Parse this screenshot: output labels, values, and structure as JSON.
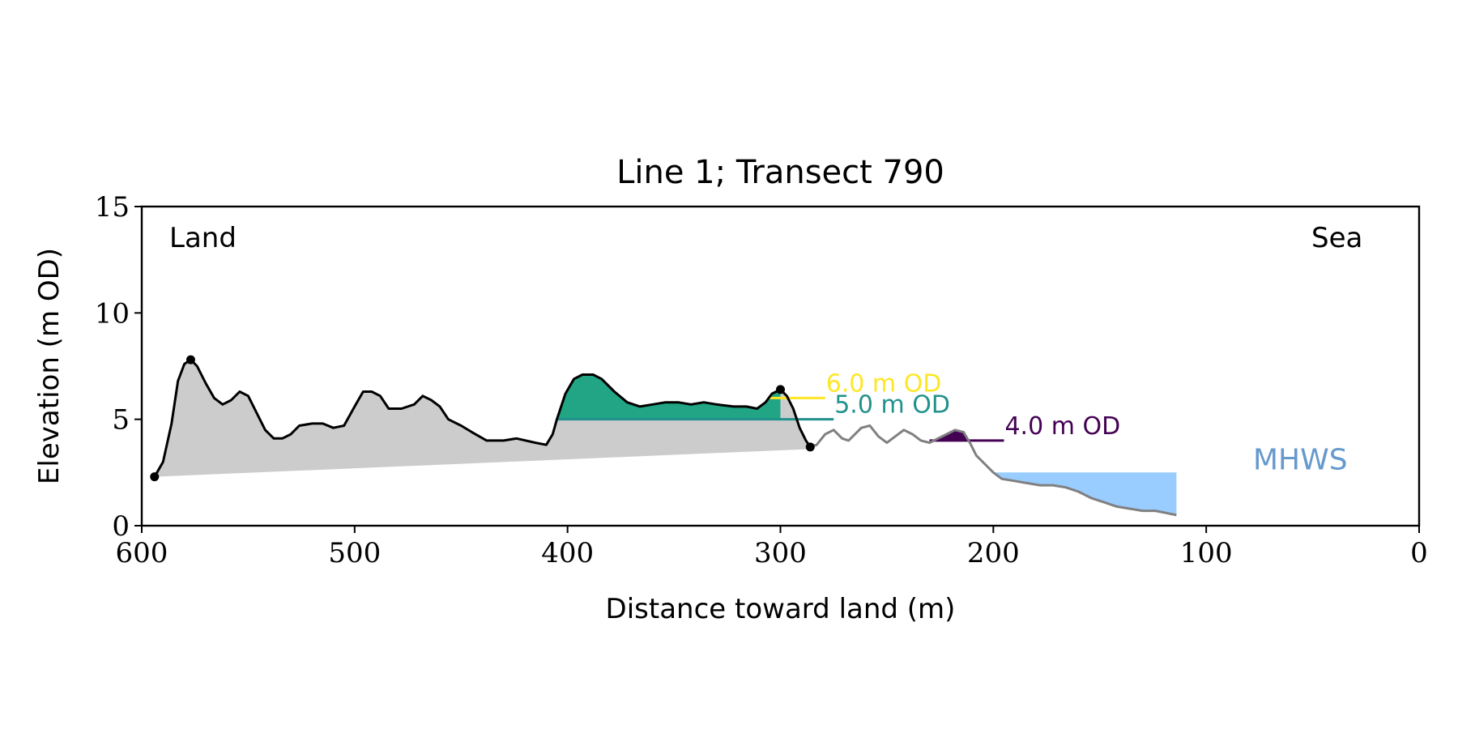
{
  "chart_data": {
    "type": "area",
    "title": "Line 1; Transect 790",
    "xlabel": "Distance toward land (m)",
    "ylabel": "Elevation (m OD)",
    "xlim": [
      600,
      0
    ],
    "ylim": [
      0,
      15
    ],
    "x_ticks": [
      600,
      500,
      400,
      300,
      200,
      100,
      0
    ],
    "y_ticks": [
      0,
      5,
      10,
      15
    ],
    "x_tick_labels": [
      "600",
      "500",
      "400",
      "300",
      "200",
      "100",
      "0"
    ],
    "y_tick_labels": [
      "0",
      "5",
      "10",
      "15"
    ],
    "grid": false,
    "corner_labels": {
      "left": "Land",
      "right": "Sea"
    },
    "profile_dune": [
      [
        594,
        2.3
      ],
      [
        590,
        3.0
      ],
      [
        586,
        4.8
      ],
      [
        583,
        6.8
      ],
      [
        580,
        7.6
      ],
      [
        577,
        7.8
      ],
      [
        574,
        7.5
      ],
      [
        570,
        6.7
      ],
      [
        566,
        6.0
      ],
      [
        562,
        5.7
      ],
      [
        558,
        5.9
      ],
      [
        554,
        6.3
      ],
      [
        550,
        6.1
      ],
      [
        546,
        5.3
      ],
      [
        542,
        4.5
      ],
      [
        538,
        4.1
      ],
      [
        534,
        4.1
      ],
      [
        530,
        4.3
      ],
      [
        526,
        4.7
      ],
      [
        520,
        4.8
      ],
      [
        515,
        4.8
      ],
      [
        510,
        4.6
      ],
      [
        505,
        4.7
      ],
      [
        500,
        5.6
      ],
      [
        496,
        6.3
      ],
      [
        492,
        6.3
      ],
      [
        488,
        6.1
      ],
      [
        484,
        5.5
      ],
      [
        478,
        5.5
      ],
      [
        472,
        5.7
      ],
      [
        468,
        6.1
      ],
      [
        464,
        5.9
      ],
      [
        460,
        5.6
      ],
      [
        456,
        5.0
      ],
      [
        450,
        4.7
      ],
      [
        445,
        4.4
      ],
      [
        438,
        4.0
      ],
      [
        430,
        4.0
      ],
      [
        424,
        4.1
      ],
      [
        415,
        3.9
      ],
      [
        410,
        3.8
      ],
      [
        407,
        4.3
      ],
      [
        405,
        5.0
      ],
      [
        401,
        6.2
      ],
      [
        397,
        6.9
      ],
      [
        393,
        7.1
      ],
      [
        388,
        7.1
      ],
      [
        384,
        6.9
      ],
      [
        378,
        6.3
      ],
      [
        372,
        5.8
      ],
      [
        366,
        5.6
      ],
      [
        360,
        5.7
      ],
      [
        354,
        5.8
      ],
      [
        348,
        5.8
      ],
      [
        342,
        5.7
      ],
      [
        336,
        5.8
      ],
      [
        330,
        5.7
      ],
      [
        322,
        5.6
      ],
      [
        316,
        5.6
      ],
      [
        311,
        5.5
      ],
      [
        307,
        5.8
      ],
      [
        304,
        6.2
      ],
      [
        300,
        6.4
      ],
      [
        297,
        6.1
      ],
      [
        294,
        5.5
      ],
      [
        291,
        4.6
      ],
      [
        288,
        4.0
      ],
      [
        286,
        3.7
      ]
    ],
    "profile_beach": [
      [
        286,
        3.7
      ],
      [
        283,
        3.8
      ],
      [
        279,
        4.3
      ],
      [
        275,
        4.5
      ],
      [
        271,
        4.1
      ],
      [
        268,
        4.0
      ],
      [
        265,
        4.3
      ],
      [
        262,
        4.6
      ],
      [
        258,
        4.7
      ],
      [
        254,
        4.2
      ],
      [
        250,
        3.9
      ],
      [
        246,
        4.2
      ],
      [
        242,
        4.5
      ],
      [
        238,
        4.3
      ],
      [
        234,
        4.0
      ],
      [
        230,
        3.9
      ],
      [
        226,
        4.1
      ],
      [
        222,
        4.3
      ],
      [
        218,
        4.5
      ],
      [
        214,
        4.4
      ],
      [
        211,
        3.9
      ],
      [
        208,
        3.3
      ],
      [
        204,
        2.9
      ],
      [
        200,
        2.5
      ],
      [
        196,
        2.2
      ],
      [
        190,
        2.1
      ],
      [
        184,
        2.0
      ],
      [
        178,
        1.9
      ],
      [
        172,
        1.9
      ],
      [
        166,
        1.8
      ],
      [
        160,
        1.6
      ],
      [
        154,
        1.3
      ],
      [
        148,
        1.1
      ],
      [
        142,
        0.9
      ],
      [
        136,
        0.8
      ],
      [
        130,
        0.7
      ],
      [
        124,
        0.7
      ],
      [
        119,
        0.6
      ],
      [
        114,
        0.5
      ]
    ],
    "dune_base_line": [
      [
        594,
        2.3
      ],
      [
        286,
        3.6
      ]
    ],
    "key_points": [
      [
        594,
        2.3
      ],
      [
        577,
        7.8
      ],
      [
        300,
        6.4
      ],
      [
        286,
        3.7
      ]
    ],
    "thresholds": [
      {
        "label": "6.0 m OD",
        "elevation": 6.0,
        "color": "#fde725",
        "x_start": 305,
        "x_end": 279,
        "fill_range": [
          307,
          300
        ]
      },
      {
        "label": "5.0 m OD",
        "elevation": 5.0,
        "color": "#21918c",
        "x_start": 405,
        "x_end": 275,
        "fill_range": [
          405,
          300
        ]
      },
      {
        "label": "4.0 m OD",
        "elevation": 4.0,
        "color": "#440154",
        "x_start": 230,
        "x_end": 195,
        "fill_range": [
          226,
          211
        ]
      }
    ],
    "mhws": {
      "label": "MHWS",
      "elevation": 2.5,
      "x_start": 200,
      "x_end": 114,
      "color": "#99ccff",
      "label_color": "#6699cc"
    },
    "colors": {
      "dune_fill": "#cccccc",
      "dune_line": "#000000",
      "beach_line": "#808080",
      "threshold_fill": "#21a585"
    }
  }
}
